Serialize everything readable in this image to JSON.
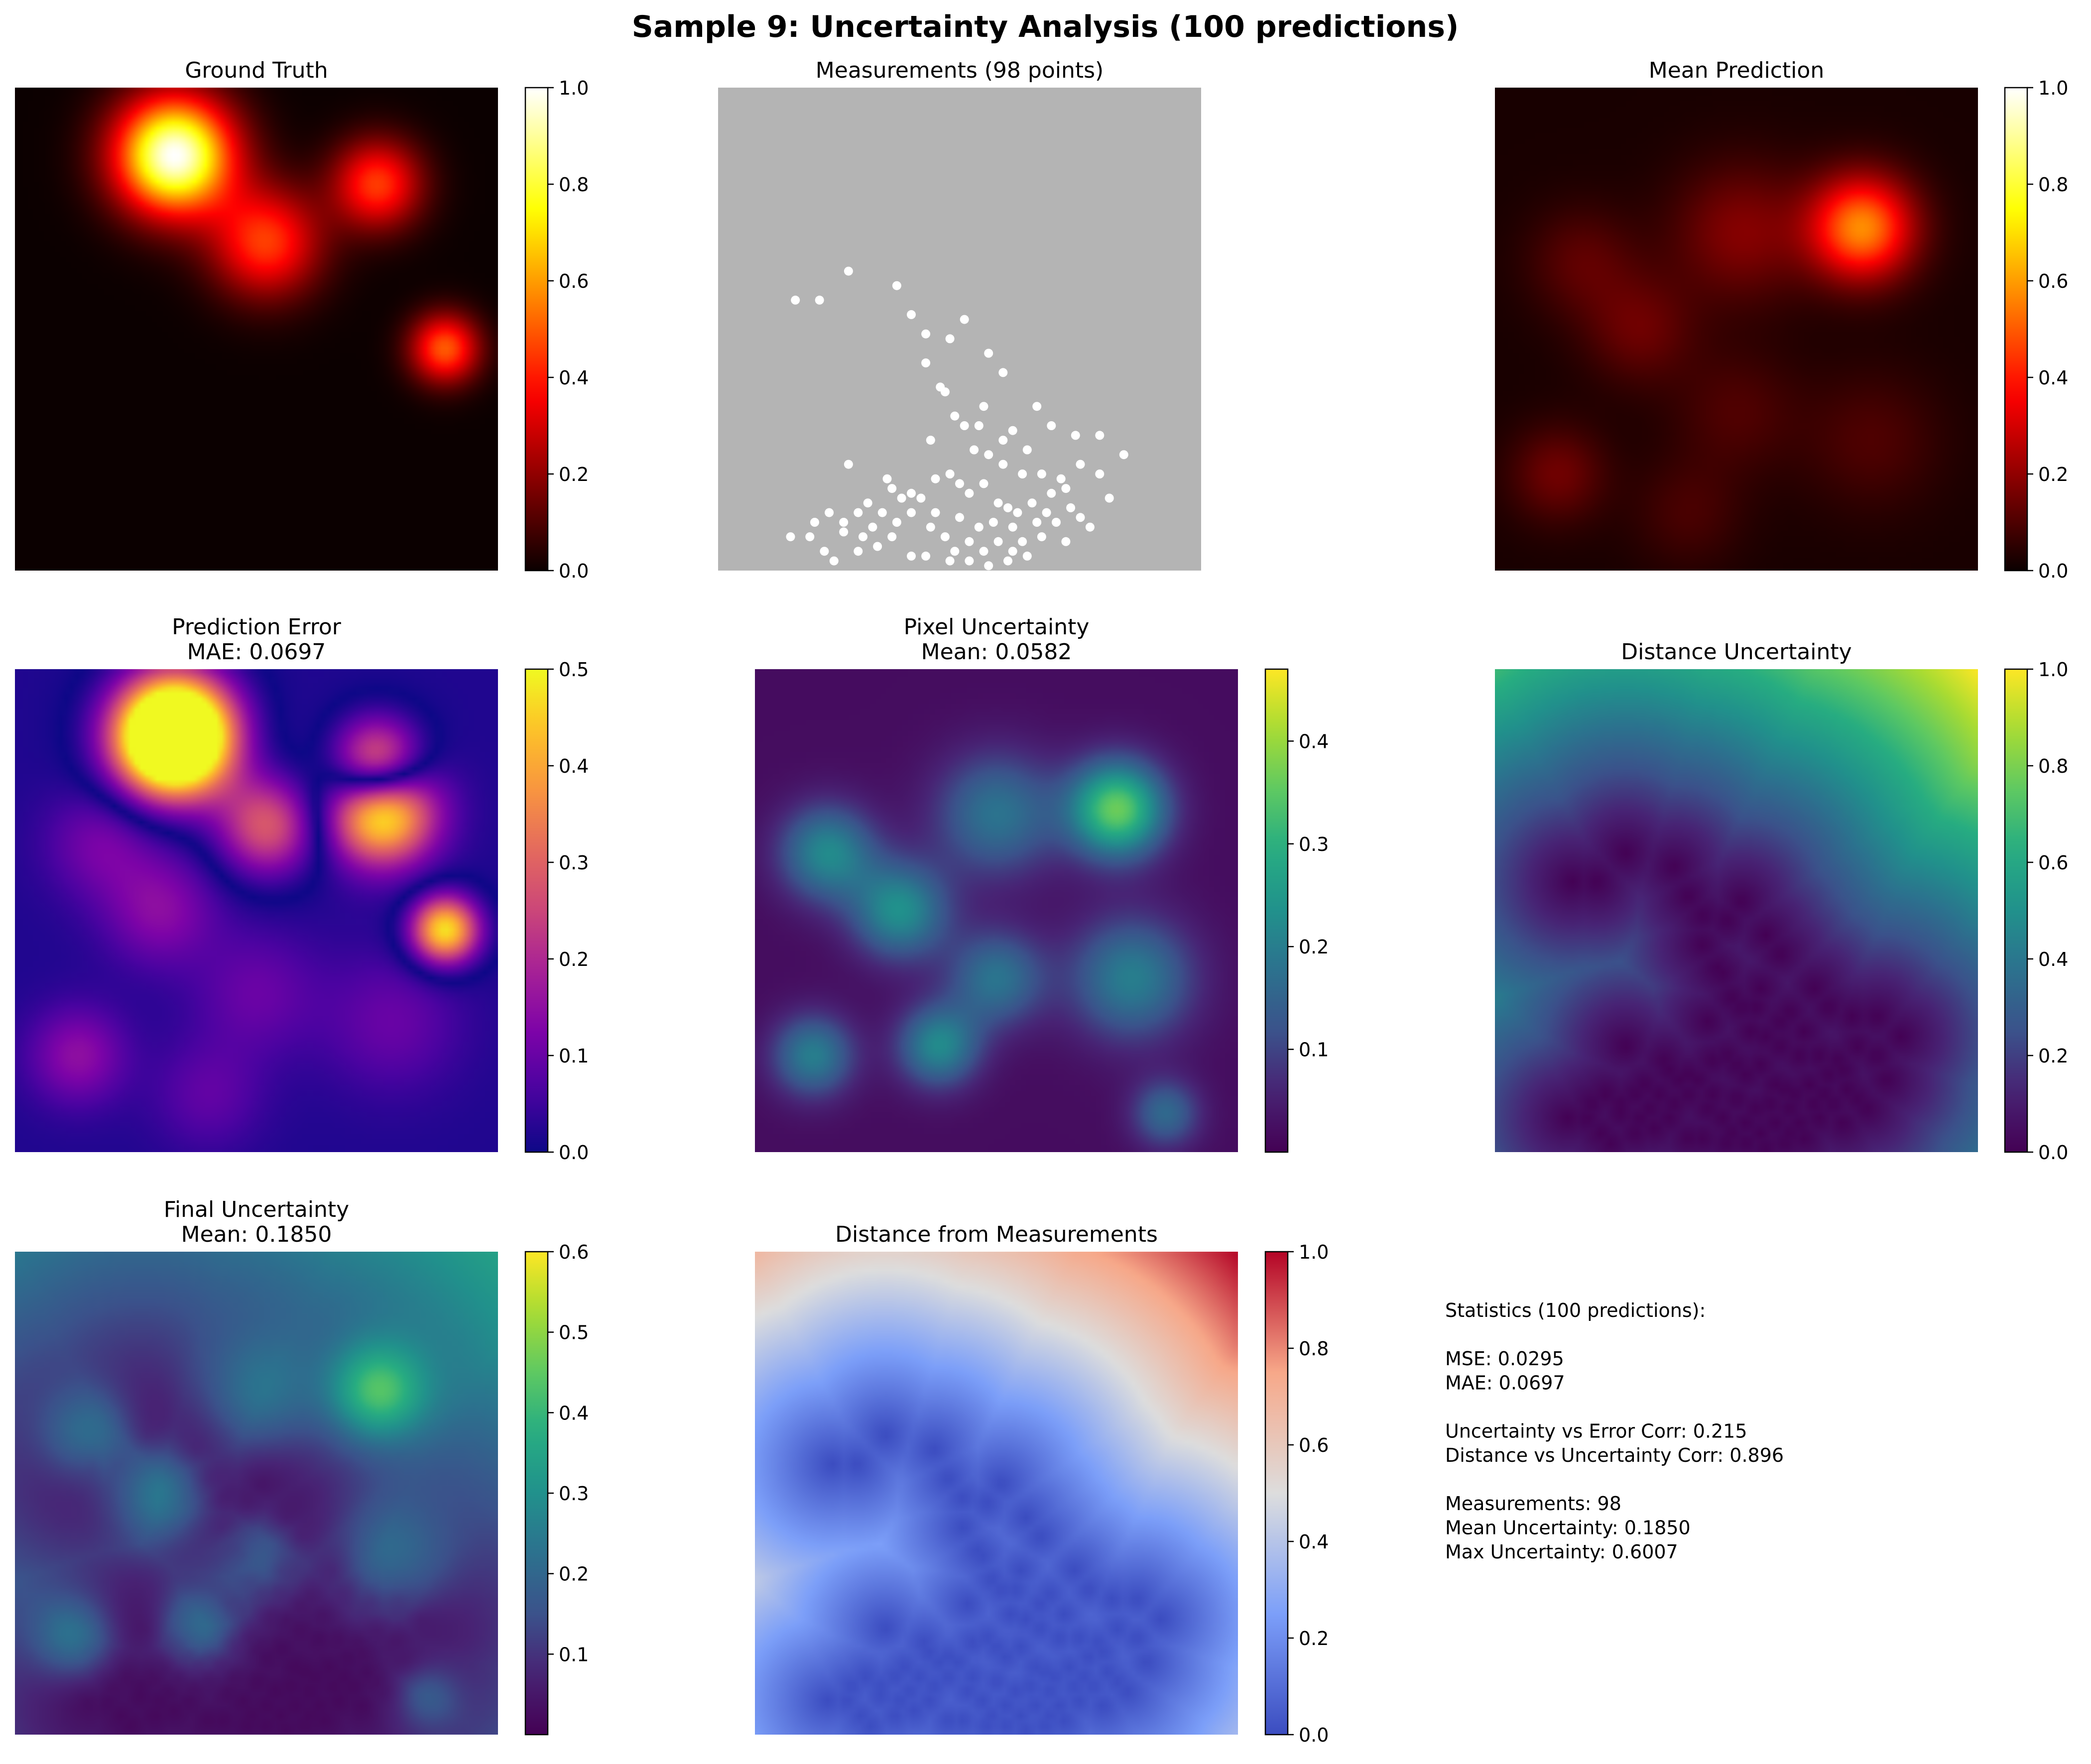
{
  "figure": {
    "title": "Sample 9: Uncertainty Analysis (100 predictions)"
  },
  "panels": [
    {
      "id": "ground-truth",
      "title": [
        "Ground Truth"
      ],
      "cmap": "hot",
      "colorbar": {
        "min": 0.0,
        "max": 1.0,
        "ticks": [
          "0.0",
          "0.2",
          "0.4",
          "0.6",
          "0.8",
          "1.0"
        ],
        "tick_values": [
          0.0,
          0.2,
          0.4,
          0.6,
          0.8,
          1.0
        ]
      }
    },
    {
      "id": "measurements",
      "title": [
        "Measurements (98 points)"
      ],
      "cmap": "none",
      "colorbar": null
    },
    {
      "id": "mean-prediction",
      "title": [
        "Mean Prediction"
      ],
      "cmap": "hot",
      "colorbar": {
        "min": 0.0,
        "max": 1.0,
        "ticks": [
          "0.0",
          "0.2",
          "0.4",
          "0.6",
          "0.8",
          "1.0"
        ],
        "tick_values": [
          0.0,
          0.2,
          0.4,
          0.6,
          0.8,
          1.0
        ]
      }
    },
    {
      "id": "prediction-error",
      "title": [
        "Prediction Error",
        "MAE: 0.0697"
      ],
      "cmap": "plasma",
      "colorbar": {
        "min": 0.0,
        "max": 0.5,
        "ticks": [
          "0.0",
          "0.1",
          "0.2",
          "0.3",
          "0.4",
          "0.5"
        ],
        "tick_values": [
          0.0,
          0.1,
          0.2,
          0.3,
          0.4,
          0.5
        ]
      }
    },
    {
      "id": "pixel-uncertainty",
      "title": [
        "Pixel Uncertainty",
        "Mean: 0.0582"
      ],
      "cmap": "viridis",
      "colorbar": {
        "min": 0.0,
        "max": 0.47,
        "ticks": [
          "0.1",
          "0.2",
          "0.3",
          "0.4"
        ],
        "tick_values": [
          0.1,
          0.2,
          0.3,
          0.4
        ]
      }
    },
    {
      "id": "distance-uncertainty",
      "title": [
        "Distance Uncertainty"
      ],
      "cmap": "viridis",
      "colorbar": {
        "min": 0.0,
        "max": 1.0,
        "ticks": [
          "0.0",
          "0.2",
          "0.4",
          "0.6",
          "0.8",
          "1.0"
        ],
        "tick_values": [
          0.0,
          0.2,
          0.4,
          0.6,
          0.8,
          1.0
        ]
      }
    },
    {
      "id": "final-uncertainty",
      "title": [
        "Final Uncertainty",
        "Mean: 0.1850"
      ],
      "cmap": "viridis",
      "colorbar": {
        "min": 0.0,
        "max": 0.6,
        "ticks": [
          "0.1",
          "0.2",
          "0.3",
          "0.4",
          "0.5",
          "0.6"
        ],
        "tick_values": [
          0.1,
          0.2,
          0.3,
          0.4,
          0.5,
          0.6
        ]
      }
    },
    {
      "id": "distance-from-measurements",
      "title": [
        "Distance from Measurements"
      ],
      "cmap": "coolwarm",
      "colorbar": {
        "min": 0.0,
        "max": 1.0,
        "ticks": [
          "0.0",
          "0.2",
          "0.4",
          "0.6",
          "0.8",
          "1.0"
        ],
        "tick_values": [
          0.0,
          0.2,
          0.4,
          0.6,
          0.8,
          1.0
        ]
      }
    }
  ],
  "statistics": {
    "lines": [
      "Statistics (100 predictions):",
      "",
      "MSE: 0.0295",
      "MAE: 0.0697",
      "",
      "Uncertainty vs Error Corr: 0.215",
      "Distance vs Uncertainty Corr: 0.896",
      "",
      "Measurements: 98",
      "Mean Uncertainty: 0.1850",
      "Max Uncertainty: 0.6007"
    ]
  },
  "chart_data": {
    "type": "heatmap",
    "grid_extent": [
      0,
      1
    ],
    "ground_truth_sources": [
      {
        "x": 0.33,
        "y": 0.86,
        "amp": 1.0,
        "sigma": 0.085
      },
      {
        "x": 0.52,
        "y": 0.68,
        "amp": 0.45,
        "sigma": 0.08
      },
      {
        "x": 0.75,
        "y": 0.8,
        "amp": 0.45,
        "sigma": 0.065
      },
      {
        "x": 0.89,
        "y": 0.46,
        "amp": 0.5,
        "sigma": 0.05
      }
    ],
    "mean_prediction_sources": [
      {
        "x": 0.51,
        "y": 0.7,
        "amp": 0.16,
        "sigma": 0.1
      },
      {
        "x": 0.18,
        "y": 0.64,
        "amp": 0.1,
        "sigma": 0.08
      },
      {
        "x": 0.3,
        "y": 0.5,
        "amp": 0.12,
        "sigma": 0.08
      },
      {
        "x": 0.13,
        "y": 0.2,
        "amp": 0.13,
        "sigma": 0.07
      },
      {
        "x": 0.5,
        "y": 0.33,
        "amp": 0.08,
        "sigma": 0.09
      },
      {
        "x": 0.78,
        "y": 0.27,
        "amp": 0.08,
        "sigma": 0.1
      },
      {
        "x": 0.76,
        "y": 0.71,
        "amp": 0.55,
        "sigma": 0.075
      },
      {
        "x": 0.4,
        "y": 0.12,
        "amp": 0.07,
        "sigma": 0.08
      }
    ],
    "pixel_uncertainty_sources": [
      {
        "x": 0.5,
        "y": 0.7,
        "amp": 0.16,
        "sigma": 0.09
      },
      {
        "x": 0.15,
        "y": 0.62,
        "amp": 0.2,
        "sigma": 0.07
      },
      {
        "x": 0.3,
        "y": 0.5,
        "amp": 0.21,
        "sigma": 0.07
      },
      {
        "x": 0.12,
        "y": 0.2,
        "amp": 0.18,
        "sigma": 0.06
      },
      {
        "x": 0.5,
        "y": 0.36,
        "amp": 0.16,
        "sigma": 0.07
      },
      {
        "x": 0.78,
        "y": 0.36,
        "amp": 0.18,
        "sigma": 0.09
      },
      {
        "x": 0.75,
        "y": 0.71,
        "amp": 0.34,
        "sigma": 0.07
      },
      {
        "x": 0.38,
        "y": 0.22,
        "amp": 0.2,
        "sigma": 0.06
      },
      {
        "x": 0.85,
        "y": 0.08,
        "amp": 0.14,
        "sigma": 0.05
      }
    ],
    "measurement_points": [
      [
        0.16,
        0.56
      ],
      [
        0.21,
        0.56
      ],
      [
        0.27,
        0.62
      ],
      [
        0.37,
        0.59
      ],
      [
        0.4,
        0.53
      ],
      [
        0.43,
        0.49
      ],
      [
        0.48,
        0.48
      ],
      [
        0.51,
        0.52
      ],
      [
        0.56,
        0.45
      ],
      [
        0.43,
        0.43
      ],
      [
        0.46,
        0.38
      ],
      [
        0.47,
        0.37
      ],
      [
        0.59,
        0.41
      ],
      [
        0.49,
        0.32
      ],
      [
        0.55,
        0.34
      ],
      [
        0.51,
        0.3
      ],
      [
        0.54,
        0.3
      ],
      [
        0.61,
        0.29
      ],
      [
        0.59,
        0.27
      ],
      [
        0.64,
        0.25
      ],
      [
        0.66,
        0.34
      ],
      [
        0.69,
        0.3
      ],
      [
        0.74,
        0.28
      ],
      [
        0.79,
        0.28
      ],
      [
        0.84,
        0.24
      ],
      [
        0.53,
        0.25
      ],
      [
        0.56,
        0.24
      ],
      [
        0.59,
        0.22
      ],
      [
        0.63,
        0.2
      ],
      [
        0.67,
        0.2
      ],
      [
        0.71,
        0.19
      ],
      [
        0.75,
        0.22
      ],
      [
        0.79,
        0.2
      ],
      [
        0.81,
        0.15
      ],
      [
        0.27,
        0.22
      ],
      [
        0.35,
        0.19
      ],
      [
        0.36,
        0.17
      ],
      [
        0.4,
        0.16
      ],
      [
        0.38,
        0.15
      ],
      [
        0.42,
        0.15
      ],
      [
        0.45,
        0.19
      ],
      [
        0.48,
        0.2
      ],
      [
        0.5,
        0.18
      ],
      [
        0.52,
        0.16
      ],
      [
        0.55,
        0.18
      ],
      [
        0.58,
        0.14
      ],
      [
        0.6,
        0.13
      ],
      [
        0.62,
        0.12
      ],
      [
        0.65,
        0.14
      ],
      [
        0.68,
        0.12
      ],
      [
        0.7,
        0.1
      ],
      [
        0.73,
        0.13
      ],
      [
        0.75,
        0.11
      ],
      [
        0.77,
        0.09
      ],
      [
        0.72,
        0.06
      ],
      [
        0.67,
        0.07
      ],
      [
        0.63,
        0.06
      ],
      [
        0.58,
        0.06
      ],
      [
        0.55,
        0.04
      ],
      [
        0.52,
        0.06
      ],
      [
        0.49,
        0.04
      ],
      [
        0.47,
        0.07
      ],
      [
        0.44,
        0.09
      ],
      [
        0.4,
        0.12
      ],
      [
        0.37,
        0.1
      ],
      [
        0.34,
        0.12
      ],
      [
        0.31,
        0.14
      ],
      [
        0.29,
        0.12
      ],
      [
        0.26,
        0.1
      ],
      [
        0.23,
        0.12
      ],
      [
        0.2,
        0.1
      ],
      [
        0.19,
        0.07
      ],
      [
        0.15,
        0.07
      ],
      [
        0.22,
        0.04
      ],
      [
        0.26,
        0.08
      ],
      [
        0.3,
        0.07
      ],
      [
        0.33,
        0.05
      ],
      [
        0.36,
        0.07
      ],
      [
        0.4,
        0.03
      ],
      [
        0.43,
        0.03
      ],
      [
        0.48,
        0.02
      ],
      [
        0.52,
        0.02
      ],
      [
        0.56,
        0.01
      ],
      [
        0.6,
        0.02
      ],
      [
        0.64,
        0.03
      ],
      [
        0.24,
        0.02
      ],
      [
        0.29,
        0.04
      ],
      [
        0.32,
        0.09
      ],
      [
        0.45,
        0.12
      ],
      [
        0.5,
        0.11
      ],
      [
        0.54,
        0.09
      ],
      [
        0.57,
        0.1
      ],
      [
        0.61,
        0.09
      ],
      [
        0.66,
        0.1
      ],
      [
        0.69,
        0.16
      ],
      [
        0.72,
        0.17
      ],
      [
        0.44,
        0.27
      ],
      [
        0.61,
        0.04
      ]
    ]
  }
}
